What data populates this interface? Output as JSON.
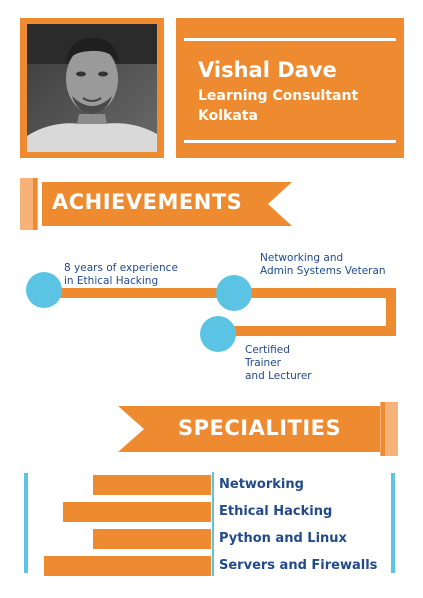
{
  "profile": {
    "name": "Vishal Dave",
    "role": "Learning Consultant",
    "city": "Kolkata"
  },
  "achievements": {
    "title": "ACHIEVEMENTS",
    "items": [
      {
        "line1": "8 years of experience",
        "line2": "in Ethical Hacking"
      },
      {
        "line1": "Networking and",
        "line2": "Admin Systems Veteran"
      },
      {
        "line1": "Certified",
        "line2": "Trainer",
        "line3": "and Lecturer"
      }
    ]
  },
  "specialities": {
    "title": "SPECIALITIES",
    "skills": [
      {
        "label": "Networking",
        "level": 0.62
      },
      {
        "label": "Ethical Hacking",
        "level": 0.78
      },
      {
        "label": "Python and Linux",
        "level": 0.62
      },
      {
        "label": "Servers and Firewalls",
        "level": 0.88
      }
    ]
  },
  "colors": {
    "orange": "#ee8a2f",
    "light_orange": "#f7b27a",
    "cyan": "#5bc4e5",
    "navy": "#234a8a",
    "white": "#ffffff"
  }
}
